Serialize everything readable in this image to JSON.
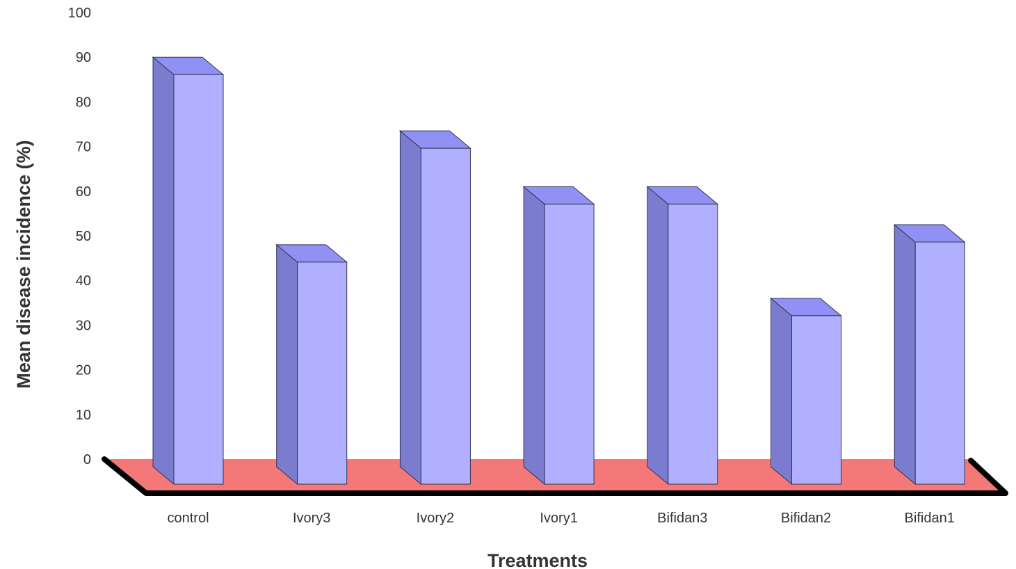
{
  "chart_data": {
    "type": "bar",
    "style": "3d-bar",
    "title": "",
    "xlabel": "Treatments",
    "ylabel": "Mean disease incidence (%)",
    "ylim": [
      0,
      100
    ],
    "yticks": [
      0,
      10,
      20,
      30,
      40,
      50,
      60,
      70,
      80,
      90,
      100
    ],
    "grid": false,
    "legend": "none",
    "categories": [
      "control",
      "Ivory3",
      "Ivory2",
      "Ivory1",
      "Bifidan3",
      "Bifidan2",
      "Bifidan1"
    ],
    "values": [
      90,
      48,
      73.5,
      61,
      61,
      36,
      52.5
    ],
    "colors": {
      "bar_front": "#b0b0ff",
      "bar_side": "#7b7bcf",
      "bar_top": "#9191f5",
      "floor": "#f47878",
      "floor_edge": "#000000",
      "outline": "#333355"
    }
  }
}
